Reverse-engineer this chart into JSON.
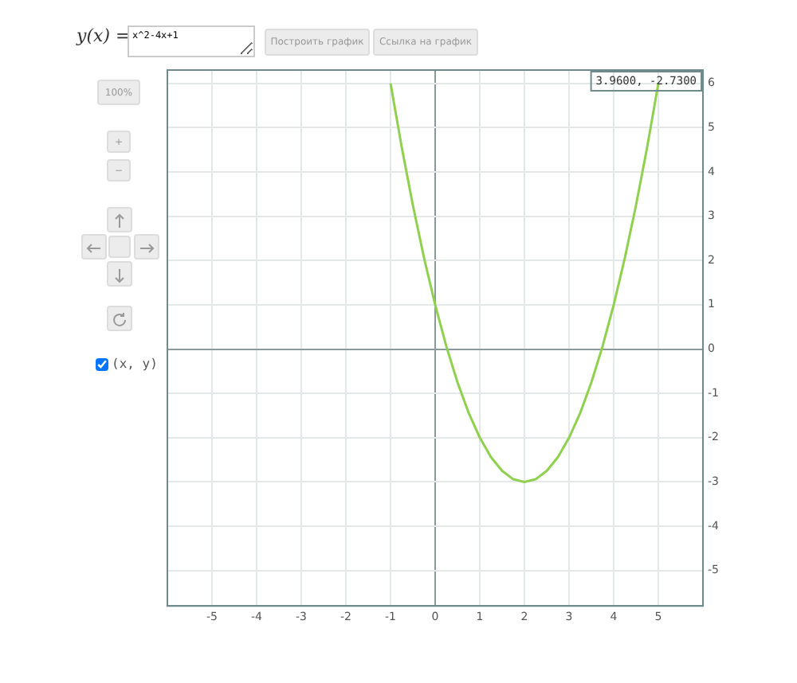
{
  "chart_data": {
    "type": "line",
    "x": [
      -1,
      -0.75,
      -0.5,
      -0.25,
      0,
      0.25,
      0.5,
      0.75,
      1,
      1.25,
      1.5,
      1.75,
      2,
      2.25,
      2.5,
      2.75,
      3,
      3.25,
      3.5,
      3.75,
      4,
      4.25,
      4.5,
      4.75,
      5
    ],
    "series": [
      {
        "color": "#8fd14f",
        "values": [
          6,
          4.56,
          3.25,
          2.06,
          1,
          0.06,
          -0.75,
          -1.44,
          -2,
          -2.44,
          -2.75,
          -2.94,
          -3,
          -2.94,
          -2.75,
          -2.44,
          -2,
          -1.44,
          -0.75,
          0.06,
          1,
          2.06,
          3.25,
          4.56,
          6
        ]
      }
    ],
    "xlim": [
      -6,
      6
    ],
    "xticks": [
      -5,
      -4,
      -3,
      -2,
      -1,
      0,
      1,
      2,
      3,
      4,
      5
    ],
    "ylim": [
      -5.8,
      6.3
    ],
    "yticks": [
      -5,
      -4,
      -3,
      -2,
      -1,
      0,
      1,
      2,
      3,
      4,
      5,
      6
    ],
    "grid": true,
    "legend": false,
    "marker": "none",
    "line_style": "solid",
    "annotations": [
      "y(x) =",
      "x^2-4x+1",
      "Построить график",
      "Ссылка на график",
      "100%",
      "+",
      "−",
      "(x, y)",
      "3.9600, -2.7300"
    ]
  }
}
